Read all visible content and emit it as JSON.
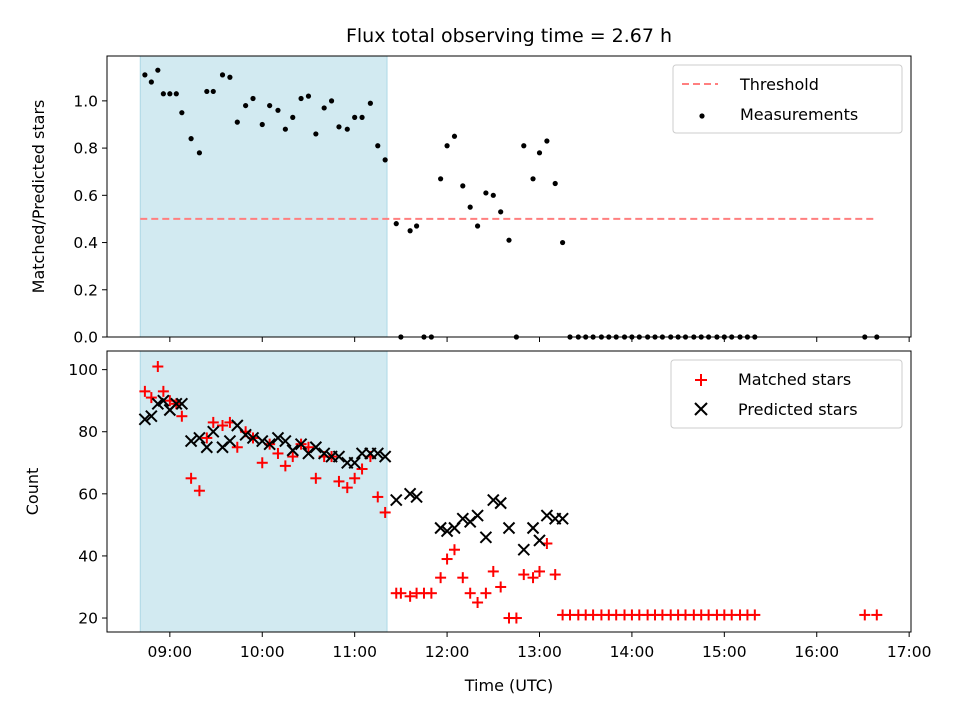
{
  "chart_data": {
    "title": "Flux total observing time = 2.67 h",
    "xlabel": "Time (UTC)",
    "x_ticks": [
      "09:00",
      "10:00",
      "11:00",
      "12:00",
      "13:00",
      "14:00",
      "15:00",
      "16:00",
      "17:00"
    ],
    "x_tick_hours": [
      9,
      10,
      11,
      12,
      13,
      14,
      15,
      16,
      17
    ],
    "xlim_hours": [
      8.32,
      17.02
    ],
    "shaded_interval_hours": [
      8.68,
      11.35
    ],
    "colors": {
      "shade": "#add8e6",
      "threshold": "#ff7f7f",
      "measurement": "#000000",
      "matched": "#ff0000",
      "predicted": "#000000"
    },
    "panels": [
      {
        "type": "scatter",
        "ylabel": "Matched/Predicted stars",
        "ylim": [
          0,
          1.19
        ],
        "y_ticks": [
          "0.0",
          "0.2",
          "0.4",
          "0.6",
          "0.8",
          "1.0"
        ],
        "y_tick_values": [
          0,
          0.2,
          0.4,
          0.6,
          0.8,
          1.0
        ],
        "legend": {
          "placement": "top-right",
          "entries": [
            "Threshold",
            "Measurements"
          ]
        },
        "threshold": {
          "name": "Threshold",
          "value": 0.5,
          "x_range_hours": [
            8.68,
            16.65
          ]
        },
        "series": [
          {
            "name": "Measurements",
            "x_hours": [
              8.73,
              8.8,
              8.87,
              8.93,
              9.0,
              9.07,
              9.13,
              9.23,
              9.32,
              9.4,
              9.47,
              9.57,
              9.65,
              9.73,
              9.82,
              9.9,
              10.0,
              10.08,
              10.17,
              10.25,
              10.33,
              10.42,
              10.5,
              10.58,
              10.67,
              10.75,
              10.83,
              10.92,
              11.0,
              11.08,
              11.17,
              11.25,
              11.33,
              11.45,
              11.5,
              11.6,
              11.67,
              11.75,
              11.83,
              11.93,
              12.0,
              12.08,
              12.17,
              12.25,
              12.33,
              12.42,
              12.5,
              12.58,
              12.67,
              12.75,
              12.83,
              12.93,
              13.0,
              13.08,
              13.17,
              13.25,
              13.33,
              13.42,
              13.5,
              13.58,
              13.67,
              13.75,
              13.83,
              13.92,
              14.0,
              14.08,
              14.17,
              14.25,
              14.33,
              14.42,
              14.5,
              14.58,
              14.67,
              14.75,
              14.83,
              14.92,
              15.0,
              15.08,
              15.17,
              15.25,
              15.33,
              16.52,
              16.65
            ],
            "y": [
              1.11,
              1.08,
              1.13,
              1.03,
              1.03,
              1.03,
              0.95,
              0.84,
              0.78,
              1.04,
              1.04,
              1.11,
              1.1,
              0.91,
              0.98,
              1.01,
              0.9,
              0.98,
              0.96,
              0.88,
              0.93,
              1.01,
              1.02,
              0.86,
              0.97,
              1.0,
              0.89,
              0.88,
              0.93,
              0.93,
              0.99,
              0.81,
              0.75,
              0.48,
              0.0,
              0.45,
              0.47,
              0.0,
              0.0,
              0.67,
              0.81,
              0.85,
              0.64,
              0.55,
              0.47,
              0.61,
              0.6,
              0.53,
              0.41,
              0.0,
              0.81,
              0.67,
              0.78,
              0.83,
              0.65,
              0.4,
              0,
              0,
              0,
              0,
              0,
              0,
              0,
              0,
              0,
              0,
              0,
              0,
              0,
              0,
              0,
              0,
              0,
              0,
              0,
              0,
              0,
              0,
              0,
              0,
              0,
              0,
              0
            ]
          }
        ]
      },
      {
        "type": "scatter",
        "ylabel": "Count",
        "ylim": [
          15.5,
          106
        ],
        "y_ticks": [
          "20",
          "40",
          "60",
          "80",
          "100"
        ],
        "y_tick_values": [
          20,
          40,
          60,
          80,
          100
        ],
        "legend": {
          "placement": "top-right",
          "entries": [
            "Matched stars",
            "Predicted stars"
          ]
        },
        "series": [
          {
            "name": "Matched stars",
            "x_hours": [
              8.73,
              8.8,
              8.87,
              8.93,
              9.0,
              9.07,
              9.13,
              9.23,
              9.32,
              9.4,
              9.47,
              9.57,
              9.65,
              9.73,
              9.82,
              9.9,
              10.0,
              10.08,
              10.17,
              10.25,
              10.33,
              10.42,
              10.5,
              10.58,
              10.67,
              10.75,
              10.83,
              10.92,
              11.0,
              11.08,
              11.17,
              11.25,
              11.33,
              11.45,
              11.5,
              11.6,
              11.67,
              11.75,
              11.83,
              11.93,
              12.0,
              12.08,
              12.17,
              12.25,
              12.33,
              12.42,
              12.5,
              12.58,
              12.67,
              12.75,
              12.83,
              12.93,
              13.0,
              13.08,
              13.17,
              13.25,
              13.33,
              13.42,
              13.5,
              13.58,
              13.67,
              13.75,
              13.83,
              13.92,
              14.0,
              14.08,
              14.17,
              14.25,
              14.33,
              14.42,
              14.5,
              14.58,
              14.67,
              14.75,
              14.83,
              14.92,
              15.0,
              15.08,
              15.17,
              15.25,
              15.33,
              16.52,
              16.65
            ],
            "y": [
              93,
              91,
              101,
              93,
              90,
              89,
              85,
              65,
              61,
              78,
              83,
              82,
              83,
              75,
              80,
              78,
              70,
              76,
              73,
              69,
              72,
              76,
              75,
              65,
              72,
              72,
              64,
              62,
              65,
              68,
              72,
              59,
              54,
              28,
              28,
              27,
              28,
              28,
              28,
              33,
              39,
              42,
              33,
              28,
              25,
              28,
              35,
              30,
              20,
              20,
              34,
              33,
              35,
              44,
              34,
              21,
              21,
              21,
              21,
              21,
              21,
              21,
              21,
              21,
              21,
              21,
              21,
              21,
              21,
              21,
              21,
              21,
              21,
              21,
              21,
              21,
              21,
              21,
              21,
              21,
              21,
              21,
              21
            ]
          },
          {
            "name": "Predicted stars",
            "x_hours": [
              8.73,
              8.8,
              8.87,
              8.93,
              9.0,
              9.07,
              9.13,
              9.23,
              9.32,
              9.4,
              9.47,
              9.57,
              9.65,
              9.73,
              9.82,
              9.9,
              10.0,
              10.08,
              10.17,
              10.25,
              10.33,
              10.42,
              10.5,
              10.58,
              10.67,
              10.75,
              10.83,
              10.92,
              11.0,
              11.08,
              11.17,
              11.25,
              11.33,
              11.45,
              11.6,
              11.67,
              11.93,
              12.0,
              12.08,
              12.17,
              12.25,
              12.33,
              12.42,
              12.5,
              12.58,
              12.67,
              12.83,
              12.93,
              13.0,
              13.08,
              13.17,
              13.25
            ],
            "y": [
              84,
              85,
              89,
              90,
              87,
              89,
              89,
              77,
              78,
              75,
              80,
              75,
              77,
              82,
              79,
              78,
              77,
              76,
              78,
              77,
              74,
              76,
              73,
              75,
              73,
              72,
              72,
              70,
              70,
              73,
              73,
              73,
              72,
              58,
              60,
              59,
              49,
              48,
              49,
              52,
              51,
              53,
              46,
              58,
              57,
              49,
              42,
              49,
              45,
              53,
              52,
              52
            ]
          }
        ]
      }
    ]
  }
}
